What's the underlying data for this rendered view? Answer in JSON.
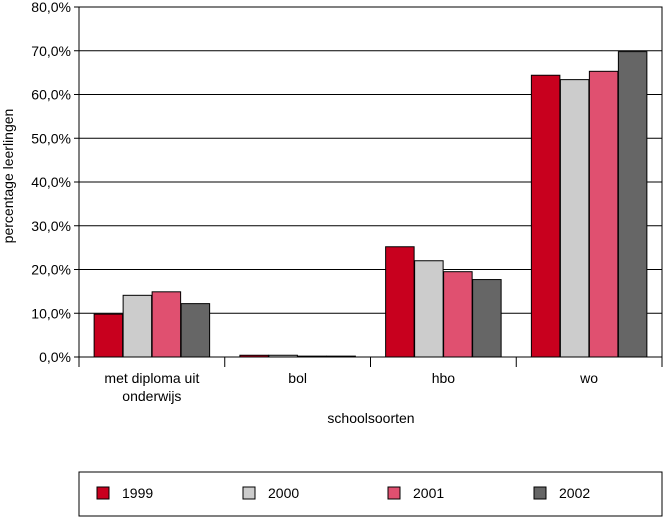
{
  "chart_data": {
    "type": "bar",
    "title": "",
    "xlabel": "schoolsoorten",
    "ylabel": "percentage leerlingen",
    "ylim": [
      0,
      80
    ],
    "y_ticks": [
      "0,0%",
      "10,0%",
      "20,0%",
      "30,0%",
      "40,0%",
      "50,0%",
      "60,0%",
      "70,0%",
      "80,0%"
    ],
    "y_tick_values": [
      0,
      10,
      20,
      30,
      40,
      50,
      60,
      70,
      80
    ],
    "grid": true,
    "legend_position": "bottom",
    "categories": [
      [
        "met diploma uit",
        "onderwijs"
      ],
      [
        "bol"
      ],
      [
        "hbo"
      ],
      [
        "wo"
      ]
    ],
    "series": [
      {
        "name": "1999",
        "color": "#c8001e",
        "values": [
          9.8,
          0.4,
          25.2,
          64.4
        ]
      },
      {
        "name": "2000",
        "color": "#cccccc",
        "values": [
          14.1,
          0.4,
          22.0,
          63.4
        ]
      },
      {
        "name": "2001",
        "color": "#e05070",
        "values": [
          14.9,
          0.2,
          19.5,
          65.3
        ]
      },
      {
        "name": "2002",
        "color": "#666666",
        "values": [
          12.2,
          0.2,
          17.7,
          69.8
        ]
      }
    ]
  }
}
